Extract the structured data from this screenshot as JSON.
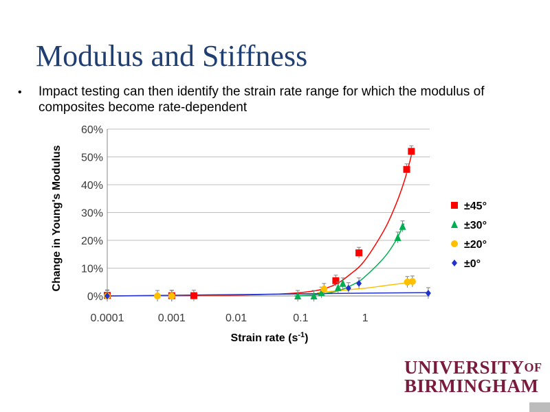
{
  "slide": {
    "title": "Modulus and Stiffness",
    "bullet": "Impact testing can then identify the strain rate range for which the modulus of composites become rate-dependent"
  },
  "logo": {
    "line1": "UNIVERSITY",
    "of": "OF",
    "line2": "BIRMINGHAM"
  },
  "chart_data": {
    "type": "scatter",
    "xlabel": "Strain rate (s",
    "xlabel_sup": "-1",
    "xlabel_close": ")",
    "ylabel": "Change in Young's Modulus",
    "x_scale": "log",
    "xlim": [
      0.0001,
      10
    ],
    "ylim": [
      0,
      60
    ],
    "x_ticks": [
      0.0001,
      0.001,
      0.01,
      0.1,
      1
    ],
    "x_tick_labels": [
      "0.0001",
      "0.001",
      "0.01",
      "0.1",
      "1"
    ],
    "y_ticks": [
      0,
      10,
      20,
      30,
      40,
      50,
      60
    ],
    "y_tick_labels": [
      "0%",
      "10%",
      "20%",
      "30%",
      "40%",
      "50%",
      "60%"
    ],
    "grid": "horizontal",
    "legend_position": "right",
    "series": [
      {
        "name": "±45°",
        "color": "#ff0000",
        "marker": "square",
        "points": [
          [
            0.0001,
            0.2
          ],
          [
            0.001,
            0.1
          ],
          [
            0.0022,
            0.1
          ],
          [
            0.35,
            5.5
          ],
          [
            0.8,
            15.5
          ],
          [
            4.4,
            45.5
          ],
          [
            5.2,
            52
          ]
        ],
        "curve": [
          [
            0.0001,
            0
          ],
          [
            0.01,
            0.3
          ],
          [
            0.1,
            1.2
          ],
          [
            0.3,
            3.5
          ],
          [
            0.6,
            8
          ],
          [
            1,
            13
          ],
          [
            2,
            24
          ],
          [
            3,
            33
          ],
          [
            4,
            41
          ],
          [
            5,
            49
          ],
          [
            5.5,
            53
          ]
        ]
      },
      {
        "name": "±30°",
        "color": "#00b050",
        "marker": "triangle",
        "points": [
          [
            0.09,
            0
          ],
          [
            0.16,
            0
          ],
          [
            0.21,
            1.2
          ],
          [
            0.38,
            3
          ],
          [
            0.45,
            4.5
          ],
          [
            3.2,
            21
          ],
          [
            3.8,
            25
          ]
        ],
        "curve": [
          [
            0.08,
            0
          ],
          [
            0.2,
            0.6
          ],
          [
            0.4,
            2
          ],
          [
            0.7,
            4.5
          ],
          [
            1,
            7
          ],
          [
            2,
            14
          ],
          [
            3,
            20
          ],
          [
            4,
            26
          ]
        ]
      },
      {
        "name": "±20°",
        "color": "#ffc000",
        "marker": "circle",
        "points": [
          [
            0.0001,
            0
          ],
          [
            0.0006,
            0
          ],
          [
            0.001,
            0
          ],
          [
            0.23,
            2.5
          ],
          [
            4.5,
            5
          ],
          [
            5.4,
            5.2
          ]
        ],
        "curve": [
          [
            0.0001,
            0
          ],
          [
            0.1,
            0.7
          ],
          [
            0.2,
            1.3
          ],
          [
            1,
            2.8
          ],
          [
            2,
            3.7
          ],
          [
            5.4,
            5
          ]
        ]
      },
      {
        "name": "±0°",
        "color": "#2233cc",
        "marker": "diamond",
        "points": [
          [
            0.0001,
            0
          ],
          [
            0.55,
            2.8
          ],
          [
            0.8,
            4.5
          ],
          [
            9.5,
            1
          ]
        ],
        "curve": [
          [
            0.0001,
            0
          ],
          [
            0.01,
            0.5
          ],
          [
            1,
            1
          ],
          [
            9.5,
            1.2
          ]
        ]
      }
    ]
  }
}
